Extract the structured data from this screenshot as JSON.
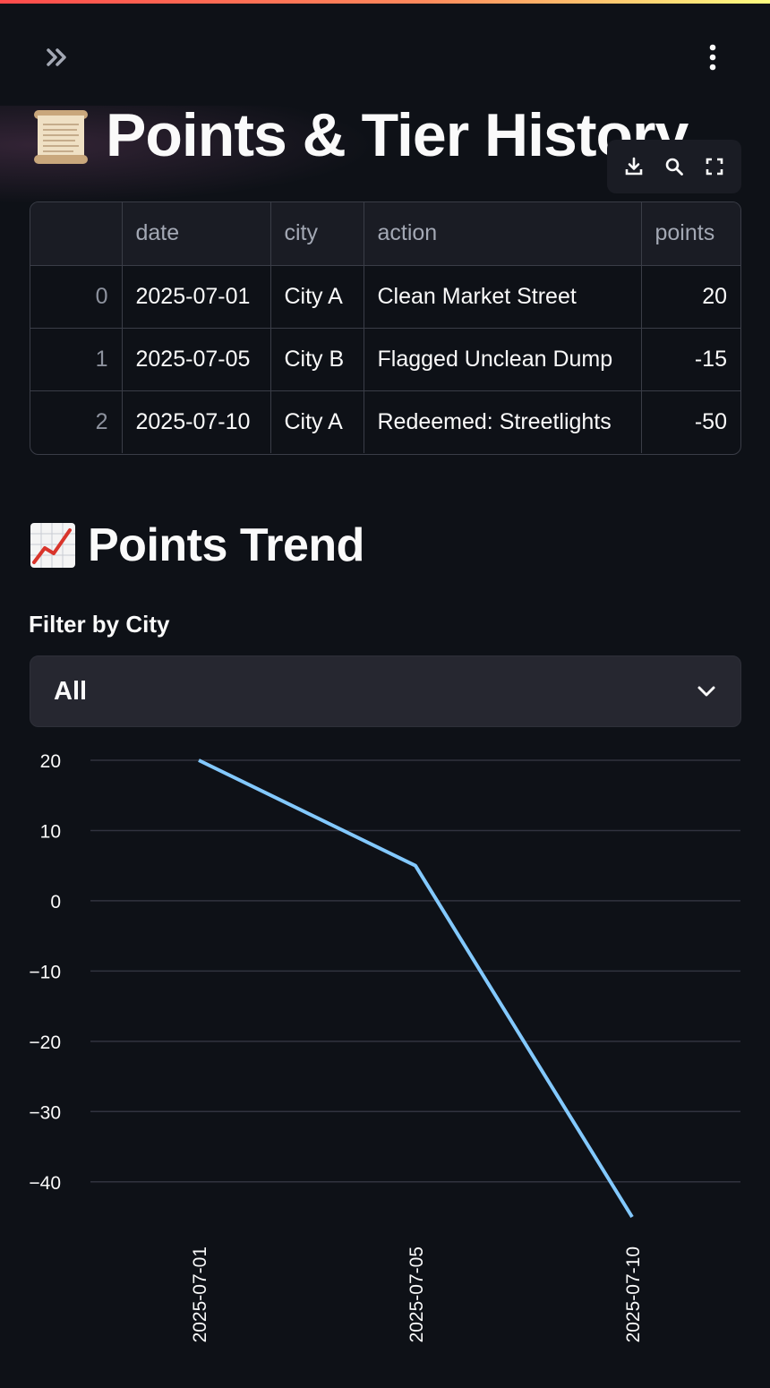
{
  "header": {
    "sidebar_toggle_icon": "double-chevron-right-icon",
    "menu_icon": "vertical-dots-icon"
  },
  "page": {
    "title": "Points & Tier History",
    "title_icon": "scroll-icon"
  },
  "table_toolbar": {
    "icons": [
      "download-icon",
      "search-icon",
      "fullscreen-icon"
    ]
  },
  "table": {
    "columns": [
      "",
      "date",
      "city",
      "action",
      "points"
    ],
    "rows": [
      {
        "index": "0",
        "date": "2025-07-01",
        "city": "City A",
        "action": "Clean Market Street",
        "points": "20"
      },
      {
        "index": "1",
        "date": "2025-07-05",
        "city": "City B",
        "action": "Flagged Unclean Dump",
        "points": "-15"
      },
      {
        "index": "2",
        "date": "2025-07-10",
        "city": "City A",
        "action": "Redeemed: Streetlights",
        "points": "-50"
      }
    ]
  },
  "trend": {
    "title": "Points Trend",
    "title_icon": "chart-increasing-icon",
    "filter_label": "Filter by City",
    "filter_value": "All",
    "filter_icon": "chevron-down-icon"
  },
  "colors": {
    "background": "#0e1117",
    "line": "#83c9ff",
    "accent_gradient_start": "#ff4b4b",
    "accent_gradient_end": "#fffd80"
  },
  "chart_data": {
    "type": "line",
    "x": [
      "2025-07-01",
      "2025-07-05",
      "2025-07-10"
    ],
    "series": [
      {
        "values": [
          20,
          5,
          -45
        ]
      }
    ],
    "yticks": [
      "20",
      "10",
      "0",
      "−10",
      "−20",
      "−30",
      "−40"
    ],
    "ytick_values": [
      20,
      10,
      0,
      -10,
      -20,
      -30,
      -40
    ],
    "ylim": [
      -45,
      20
    ],
    "grid": true,
    "xlabel": "",
    "ylabel": ""
  }
}
